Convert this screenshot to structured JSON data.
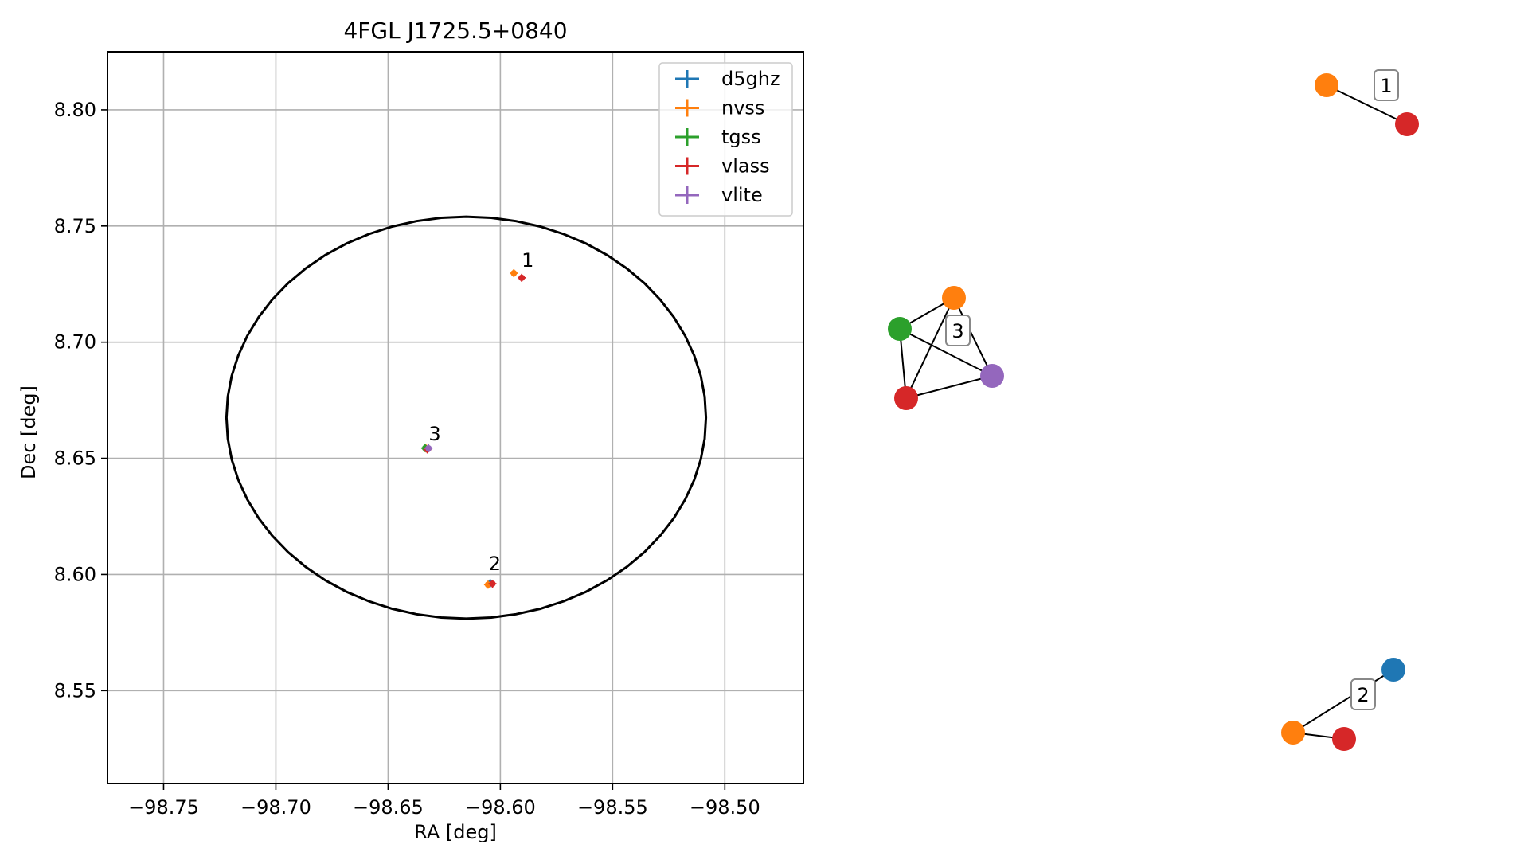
{
  "chart_data": [
    {
      "type": "scatter",
      "title": "4FGL J1725.5+0840",
      "xlabel": "RA [deg]",
      "ylabel": "Dec [deg]",
      "xlim": [
        -98.775,
        -98.465
      ],
      "ylim": [
        8.51,
        8.825
      ],
      "xticks": [
        -98.75,
        -98.7,
        -98.65,
        -98.6,
        -98.55,
        -98.5
      ],
      "xtick_labels": [
        "−98.75",
        "−98.70",
        "−98.65",
        "−98.60",
        "−98.55",
        "−98.50"
      ],
      "yticks": [
        8.55,
        8.6,
        8.65,
        8.7,
        8.75,
        8.8
      ],
      "ytick_labels": [
        "8.55",
        "8.60",
        "8.65",
        "8.70",
        "8.75",
        "8.80"
      ],
      "grid": true,
      "legend_position": "top-right",
      "ellipse": {
        "center": [
          -98.6152,
          8.6675
        ],
        "half_width_ra": 0.1068,
        "half_height_dec": 0.0865,
        "color": "#000000"
      },
      "series": [
        {
          "name": "d5ghz",
          "color": "#1f77b4",
          "points": [
            [
              -98.6045,
              8.5962
            ]
          ]
        },
        {
          "name": "nvss",
          "color": "#ff7f0e",
          "points": [
            [
              -98.594,
              8.7297
            ],
            [
              -98.6055,
              8.5956
            ],
            [
              -98.633,
              8.6542
            ]
          ]
        },
        {
          "name": "tgss",
          "color": "#2ca02c",
          "points": [
            [
              -98.6335,
              8.6544
            ]
          ]
        },
        {
          "name": "vlass",
          "color": "#d62728",
          "points": [
            [
              -98.5905,
              8.7277
            ],
            [
              -98.6035,
              8.596
            ],
            [
              -98.6325,
              8.6538
            ]
          ]
        },
        {
          "name": "vlite",
          "color": "#9467bd",
          "points": [
            [
              -98.632,
              8.6543
            ]
          ]
        }
      ],
      "annotations": [
        {
          "text": "1",
          "x": -98.5878,
          "y": 8.7325
        },
        {
          "text": "2",
          "x": -98.6025,
          "y": 8.6018
        },
        {
          "text": "3",
          "x": -98.6292,
          "y": 8.6578
        }
      ]
    },
    {
      "type": "graph",
      "groups": [
        {
          "label": "1",
          "nodes": [
            {
              "survey": "nvss",
              "color": "#ff7f0e"
            },
            {
              "survey": "vlass",
              "color": "#d62728"
            }
          ],
          "edges": [
            [
              0,
              1
            ]
          ]
        },
        {
          "label": "2",
          "nodes": [
            {
              "survey": "d5ghz",
              "color": "#1f77b4"
            },
            {
              "survey": "nvss",
              "color": "#ff7f0e"
            },
            {
              "survey": "vlass",
              "color": "#d62728"
            }
          ],
          "edges": [
            [
              0,
              1
            ],
            [
              1,
              2
            ]
          ]
        },
        {
          "label": "3",
          "nodes": [
            {
              "survey": "nvss",
              "color": "#ff7f0e"
            },
            {
              "survey": "tgss",
              "color": "#2ca02c"
            },
            {
              "survey": "vlite",
              "color": "#9467bd"
            },
            {
              "survey": "vlass",
              "color": "#d62728"
            }
          ],
          "edges": [
            [
              0,
              1
            ],
            [
              0,
              2
            ],
            [
              0,
              3
            ],
            [
              1,
              2
            ],
            [
              1,
              3
            ],
            [
              2,
              3
            ]
          ]
        }
      ]
    }
  ]
}
